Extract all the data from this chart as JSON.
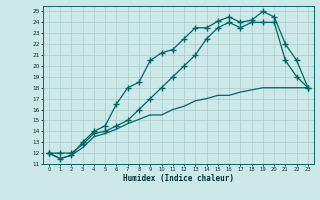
{
  "title": "",
  "xlabel": "Humidex (Indice chaleur)",
  "bg_color": "#cce8e8",
  "grid_color": "#aacccc",
  "line_color": "#006666",
  "xlim": [
    -0.5,
    23.5
  ],
  "ylim": [
    11,
    25.5
  ],
  "xticks": [
    0,
    1,
    2,
    3,
    4,
    5,
    6,
    7,
    8,
    9,
    10,
    11,
    12,
    13,
    14,
    15,
    16,
    17,
    18,
    19,
    20,
    21,
    22,
    23
  ],
  "yticks": [
    11,
    12,
    13,
    14,
    15,
    16,
    17,
    18,
    19,
    20,
    21,
    22,
    23,
    24,
    25
  ],
  "line1_x": [
    0,
    1,
    2,
    3,
    4,
    5,
    6,
    7,
    8,
    9,
    10,
    11,
    12,
    13,
    14,
    15,
    16,
    17,
    18,
    19,
    20,
    21,
    22,
    23
  ],
  "line1_y": [
    12,
    11.5,
    11.8,
    13,
    14,
    14.5,
    16.5,
    18,
    18.5,
    20.5,
    21.2,
    21.5,
    22.5,
    23.5,
    23.5,
    24.1,
    24.5,
    24.0,
    24.2,
    25,
    24.5,
    22,
    20.5,
    18
  ],
  "line2_x": [
    0,
    1,
    2,
    3,
    4,
    5,
    6,
    7,
    8,
    9,
    10,
    11,
    12,
    13,
    14,
    15,
    16,
    17,
    18,
    19,
    20,
    21,
    22,
    23
  ],
  "line2_y": [
    12,
    11.5,
    11.8,
    12.5,
    13.5,
    13.8,
    14.2,
    14.7,
    15.1,
    15.5,
    15.5,
    16.0,
    16.3,
    16.8,
    17.0,
    17.3,
    17.3,
    17.6,
    17.8,
    18.0,
    18.0,
    18.0,
    18.0,
    18.0
  ],
  "line3_x": [
    0,
    1,
    2,
    3,
    4,
    5,
    6,
    7,
    8,
    9,
    10,
    11,
    12,
    13,
    14,
    15,
    16,
    17,
    18,
    19,
    20,
    21,
    22,
    23
  ],
  "line3_y": [
    12,
    12,
    12,
    12.8,
    13.8,
    14.0,
    14.5,
    15.0,
    16.0,
    17.0,
    18.0,
    19.0,
    20.0,
    21.0,
    22.5,
    23.5,
    24.0,
    23.5,
    24.0,
    24.0,
    24.0,
    20.5,
    19.0,
    18.0
  ]
}
